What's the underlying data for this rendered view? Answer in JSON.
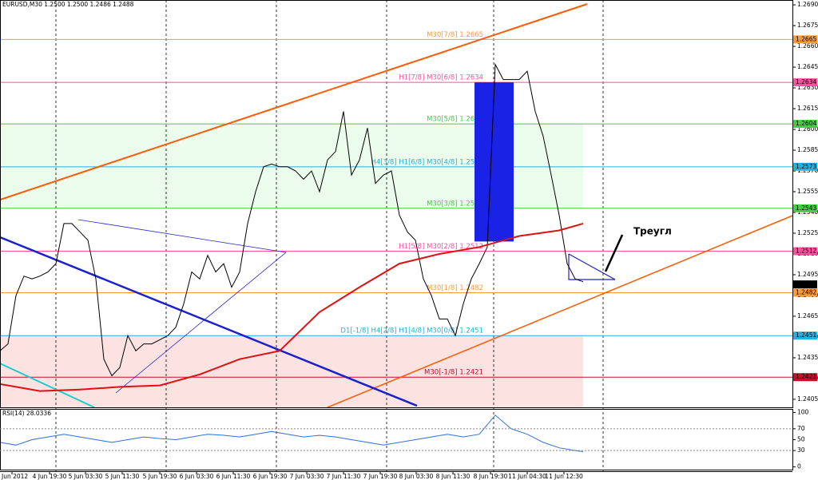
{
  "chart_data": {
    "type": "line",
    "title": "EURUSD,M30  1.2500 1.2500 1.2486 1.2488",
    "annotation": "Треугл",
    "xlim": [
      0,
      99.2
    ],
    "ylim": [
      1.23992,
      1.26935
    ],
    "xticks": [
      {
        "value": 1.5,
        "label": "4 Jun 2012"
      },
      {
        "value": 6.2,
        "label": "4 Jun 19:30"
      },
      {
        "value": 10.7,
        "label": "5 Jun 03:30"
      },
      {
        "value": 15.3,
        "label": "5 Jun 11:30"
      },
      {
        "value": 20,
        "label": "5 Jun 19:30"
      },
      {
        "value": 24.6,
        "label": "6 Jun 03:30"
      },
      {
        "value": 29.2,
        "label": "6 Jun 11:30"
      },
      {
        "value": 33.8,
        "label": "6 Jun 19:30"
      },
      {
        "value": 38.4,
        "label": "7 Jun 03:30"
      },
      {
        "value": 43,
        "label": "7 Jun 11:30"
      },
      {
        "value": 47.6,
        "label": "7 Jun 19:30"
      },
      {
        "value": 52.1,
        "label": "8 Jun 03:30"
      },
      {
        "value": 56.7,
        "label": "8 Jun 11:30"
      },
      {
        "value": 61.4,
        "label": "8 Jun 19:30"
      },
      {
        "value": 66,
        "label": "11 Jun 04:30"
      },
      {
        "value": 70.6,
        "label": "11 Jun 12:30"
      }
    ],
    "vgrid": [
      7,
      20.8,
      34.6,
      48.4,
      61.8,
      75.5
    ],
    "yticks": [
      1.2405,
      {
        "value": 1.242,
        "label": "1.2420"
      },
      1.2435,
      {
        "value": 1.245,
        "label": "1.2450"
      },
      1.2465,
      {
        "value": 1.248,
        "label": "1.2480"
      },
      1.2495,
      {
        "value": 1.251,
        "label": "1.2510"
      },
      1.2525,
      {
        "value": 1.254,
        "label": "1.2540"
      },
      1.2555,
      {
        "value": 1.257,
        "label": "1.2570"
      },
      1.2585,
      {
        "value": 1.26,
        "label": "1.2600"
      },
      1.2615,
      {
        "value": 1.263,
        "label": "1.2630"
      },
      1.2645,
      {
        "value": 1.266,
        "label": "1.2660"
      },
      1.2675,
      {
        "value": 1.269,
        "label": "1.2690"
      }
    ],
    "levels": [
      {
        "label": "M30[7/8] 1.2665",
        "value": 1.2665,
        "color": "#ff9933"
      },
      {
        "label": "H1[7/8] M30[6/8] 1.2634",
        "value": 1.2634,
        "color": "#ff4fa0"
      },
      {
        "label": "M30[5/8] 1.2604",
        "value": 1.2604,
        "color": "#44cc44"
      },
      {
        "label": "H4[3/8] H1[6/8] M30[4/8] 1.2573",
        "value": 1.2573,
        "color": "#22b0e0"
      },
      {
        "label": "M30[3/8] 1.2543",
        "value": 1.2543,
        "color": "#44cc44"
      },
      {
        "label": "H1[5/8] M30[2/8] 1.2512",
        "value": 1.2512,
        "color": "#ff4fa0"
      },
      {
        "label": "M30[1/8] 1.2482",
        "value": 1.2482,
        "color": "#ff9933"
      },
      {
        "label": "D1[-1/8] H4[2/8] H1[4/8] M30[0/8] 1.2451",
        "value": 1.2451,
        "color": "#22b0e0"
      },
      {
        "label": "M30[-1/8] 1.2421",
        "value": 1.2421,
        "color": "#c0102a"
      }
    ],
    "zones": [
      {
        "from": 1.2604,
        "to": 1.2543,
        "color": "#ecfcec"
      },
      {
        "from": 1.2451,
        "to": 1.23992,
        "color": "#fde2e2"
      }
    ],
    "box": {
      "x": [
        59.4,
        64.3
      ],
      "top": 1.2634,
      "bottom": 1.2519,
      "color": "#1a22e6"
    },
    "last_price": {
      "value": 1.2488,
      "color": "#000000"
    },
    "series": [
      {
        "name": "EURUSD",
        "color": "#000000",
        "x": [
          0,
          1,
          2,
          3,
          4,
          5,
          6,
          7,
          8,
          9,
          10,
          11,
          12,
          13,
          14,
          15,
          16,
          17,
          18,
          19,
          20,
          21,
          22,
          23,
          24,
          25,
          26,
          27,
          28,
          29,
          30,
          31,
          32,
          33,
          34,
          35,
          36,
          37,
          38,
          39,
          40,
          41,
          42,
          43,
          44,
          45,
          46,
          47,
          48,
          49,
          50,
          51,
          52,
          53,
          54,
          55,
          56,
          57,
          58,
          59,
          60,
          61,
          62,
          63,
          64,
          65,
          66,
          67,
          68,
          69,
          70,
          71,
          72,
          73
        ],
        "values": [
          1.244,
          1.2445,
          1.248,
          1.2494,
          1.2492,
          1.2494,
          1.2497,
          1.2503,
          1.2532,
          1.2532,
          1.2526,
          1.252,
          1.2492,
          1.2434,
          1.2422,
          1.2428,
          1.2451,
          1.244,
          1.2445,
          1.2445,
          1.2448,
          1.2451,
          1.2457,
          1.2474,
          1.2497,
          1.2492,
          1.2509,
          1.2497,
          1.2503,
          1.2486,
          1.2497,
          1.2532,
          1.2555,
          1.2573,
          1.2575,
          1.2573,
          1.2573,
          1.257,
          1.2564,
          1.257,
          1.2555,
          1.2578,
          1.2584,
          1.2613,
          1.2567,
          1.2578,
          1.2601,
          1.2561,
          1.2567,
          1.257,
          1.2538,
          1.2526,
          1.252,
          1.2492,
          1.248,
          1.2463,
          1.2463,
          1.2451,
          1.2474,
          1.2492,
          1.2503,
          1.2515,
          1.2647,
          1.2636,
          1.2636,
          1.2636,
          1.2642,
          1.2613,
          1.2595,
          1.2567,
          1.2538,
          1.2503,
          1.2492,
          1.249
        ]
      },
      {
        "name": "MA",
        "color": "#dd1111",
        "x": [
          0,
          5,
          10,
          15,
          20,
          25,
          30,
          35,
          40,
          45,
          50,
          55,
          60,
          65,
          70,
          73
        ],
        "values": [
          1.2416,
          1.2411,
          1.2412,
          1.2414,
          1.2415,
          1.2423,
          1.2434,
          1.244,
          1.2468,
          1.2486,
          1.2503,
          1.251,
          1.2515,
          1.2523,
          1.2527,
          1.2532
        ]
      }
    ],
    "rsi": {
      "label": "RSI(14) 28.0336",
      "color": "#2e6fd8",
      "ylim": [
        -5,
        105
      ],
      "yticks": [
        0,
        30,
        50,
        70,
        100
      ],
      "levels": [
        30,
        70
      ],
      "x": [
        0,
        2,
        4,
        6,
        8,
        10,
        12,
        14,
        16,
        18,
        20,
        22,
        24,
        26,
        28,
        30,
        32,
        34,
        36,
        38,
        40,
        42,
        44,
        46,
        48,
        50,
        52,
        54,
        56,
        58,
        60,
        62,
        64,
        66,
        68,
        70,
        72,
        73
      ],
      "values": [
        45,
        40,
        50,
        55,
        60,
        55,
        50,
        45,
        50,
        55,
        52,
        50,
        55,
        60,
        58,
        55,
        60,
        65,
        60,
        55,
        58,
        55,
        50,
        45,
        40,
        45,
        50,
        55,
        60,
        55,
        60,
        95,
        70,
        60,
        45,
        35,
        30,
        28.0336
      ]
    }
  }
}
